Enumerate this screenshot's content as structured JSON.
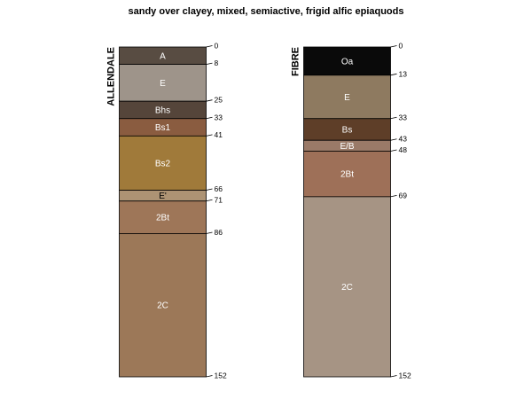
{
  "title": "sandy over clayey, mixed, semiactive, frigid alfic epiaquods",
  "max_depth": 152,
  "profiles": [
    {
      "name": "ALLENDALE",
      "horizons": [
        {
          "name": "A",
          "top": 0,
          "bottom": 8,
          "color": "#584c42",
          "text_color": "#ffffff"
        },
        {
          "name": "E",
          "top": 8,
          "bottom": 25,
          "color": "#9e948a",
          "text_color": "#ffffff"
        },
        {
          "name": "Bhs",
          "top": 25,
          "bottom": 33,
          "color": "#55453a",
          "text_color": "#ffffff"
        },
        {
          "name": "Bs1",
          "top": 33,
          "bottom": 41,
          "color": "#8a5c40",
          "text_color": "#ffffff"
        },
        {
          "name": "Bs2",
          "top": 41,
          "bottom": 66,
          "color": "#a07a3a",
          "text_color": "#ffffff"
        },
        {
          "name": "E'",
          "top": 66,
          "bottom": 71,
          "color": "#ad9374",
          "text_color": "#000000"
        },
        {
          "name": "2Bt",
          "top": 71,
          "bottom": 86,
          "color": "#9e7658",
          "text_color": "#ffffff"
        },
        {
          "name": "2C",
          "top": 86,
          "bottom": 152,
          "color": "#9c7858",
          "text_color": "#ffffff"
        }
      ],
      "depth_labels": [
        "0",
        "8",
        "25",
        "33",
        "41",
        "66",
        "71",
        "86",
        "152"
      ]
    },
    {
      "name": "FIBRE",
      "horizons": [
        {
          "name": "Oa",
          "top": 0,
          "bottom": 13,
          "color": "#0a0a0a",
          "text_color": "#ffffff"
        },
        {
          "name": "E",
          "top": 13,
          "bottom": 33,
          "color": "#8e7a60",
          "text_color": "#ffffff"
        },
        {
          "name": "Bs",
          "top": 33,
          "bottom": 43,
          "color": "#5e3e28",
          "text_color": "#ffffff"
        },
        {
          "name": "E/B",
          "top": 43,
          "bottom": 48,
          "color": "#9a7a68",
          "text_color": "#ffffff"
        },
        {
          "name": "2Bt",
          "top": 48,
          "bottom": 69,
          "color": "#9e7058",
          "text_color": "#ffffff"
        },
        {
          "name": "2C",
          "top": 69,
          "bottom": 152,
          "color": "#a69484",
          "text_color": "#ffffff"
        }
      ],
      "depth_labels": [
        "0",
        "13",
        "33",
        "43",
        "48",
        "69",
        "152"
      ]
    }
  ]
}
